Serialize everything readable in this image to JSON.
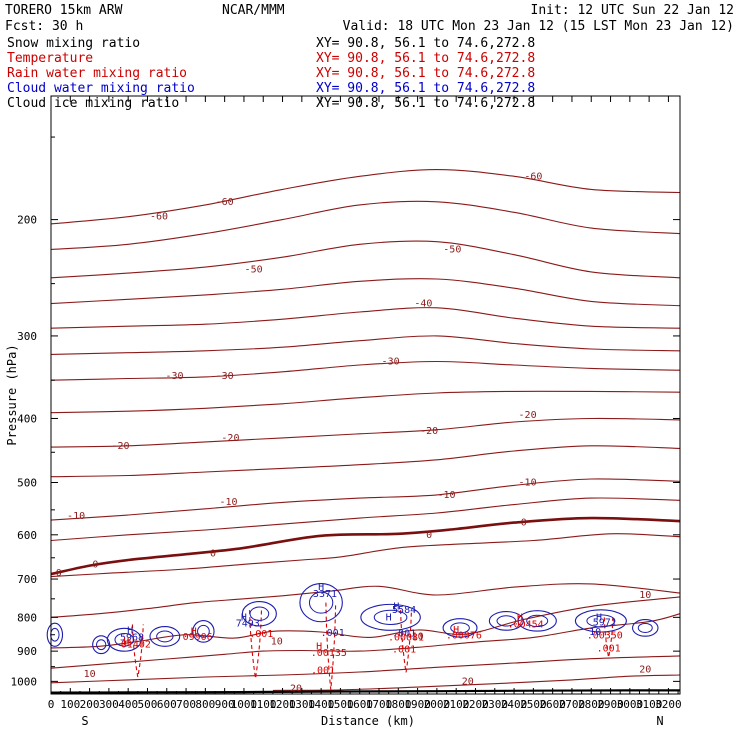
{
  "header": {
    "model": "TORERO  15km ARW",
    "center": "NCAR/MMM",
    "init": "Init: 12 UTC Sun 22 Jan 12",
    "fcst": "Fcst:   30 h",
    "valid": "Valid: 18 UTC Mon 23 Jan 12 (15 LST Mon 23 Jan 12)"
  },
  "fields": [
    {
      "name": "Snow mixing ratio",
      "color": "#000000",
      "xy": "XY=  90.8, 56.1 to  74.6,272.8"
    },
    {
      "name": "Temperature",
      "color": "#cc0000",
      "xy": "XY=  90.8, 56.1 to  74.6,272.8"
    },
    {
      "name": "Rain water mixing ratio",
      "color": "#cc0000",
      "xy": "XY=  90.8, 56.1 to  74.6,272.8"
    },
    {
      "name": "Cloud water mixing ratio",
      "color": "#0000cc",
      "xy": "XY=  90.8, 56.1 to  74.6,272.8"
    },
    {
      "name": "Cloud ice mixing ratio",
      "color": "#000000",
      "xy": "XY=  90.8, 56.1 to  74.6,272.8"
    }
  ],
  "colors": {
    "temperature": "#8b1a1a",
    "zero_isotherm": "#7a0f0f",
    "rain": "#dd0000",
    "cloud_water": "#1c1cb0",
    "cloud_ice": "#000000"
  },
  "chart_data": {
    "type": "line",
    "title": "",
    "xlabel": "Distance (km)",
    "ylabel": "Pressure (hPa)",
    "xlim": [
      0,
      3260
    ],
    "ylim": [
      1045,
      130
    ],
    "y_scale": "log",
    "x_ticks": [
      "0",
      "100",
      "200",
      "300",
      "400",
      "500",
      "600",
      "700",
      "800",
      "900",
      "1000",
      "1100",
      "1200",
      "1300",
      "1400",
      "1500",
      "1600",
      "1700",
      "1800",
      "1900",
      "2000",
      "2100",
      "2200",
      "2300",
      "2400",
      "2500",
      "2600",
      "2700",
      "2800",
      "2900",
      "3000",
      "3100",
      "3200"
    ],
    "y_ticks": [
      "200",
      "300",
      "400",
      "500",
      "600",
      "700",
      "800",
      "900",
      "1000"
    ],
    "x_end_labels": {
      "left": "S",
      "right": "N"
    },
    "isotherm_labels": [
      {
        "label": "-60",
        "x": 560,
        "p": 198
      },
      {
        "label": "-60",
        "x": 900,
        "p": 188
      },
      {
        "label": "-60",
        "x": 2500,
        "p": 172
      },
      {
        "label": "-50",
        "x": 1050,
        "p": 238
      },
      {
        "label": "-50",
        "x": 2080,
        "p": 222
      },
      {
        "label": "-40",
        "x": 1930,
        "p": 268
      },
      {
        "label": "-30",
        "x": 640,
        "p": 345
      },
      {
        "label": "-30",
        "x": 900,
        "p": 345
      },
      {
        "label": "-30",
        "x": 1760,
        "p": 328
      },
      {
        "label": "-20",
        "x": 360,
        "p": 440
      },
      {
        "label": "-20",
        "x": 930,
        "p": 428
      },
      {
        "label": "-20",
        "x": 1960,
        "p": 418
      },
      {
        "label": "-20",
        "x": 2470,
        "p": 395
      },
      {
        "label": "-10",
        "x": 130,
        "p": 562
      },
      {
        "label": "-10",
        "x": 920,
        "p": 535
      },
      {
        "label": "-10",
        "x": 2050,
        "p": 522
      },
      {
        "label": "-10",
        "x": 2470,
        "p": 500
      },
      {
        "label": "0",
        "x": 40,
        "p": 685
      },
      {
        "label": "0",
        "x": 230,
        "p": 665
      },
      {
        "label": "0",
        "x": 840,
        "p": 640
      },
      {
        "label": "0",
        "x": 1960,
        "p": 600
      },
      {
        "label": "0",
        "x": 2450,
        "p": 575
      },
      {
        "label": "10",
        "x": 1170,
        "p": 870
      },
      {
        "label": "10",
        "x": 1900,
        "p": 855
      },
      {
        "label": "10",
        "x": 3080,
        "p": 740
      },
      {
        "label": "10",
        "x": 200,
        "p": 975
      },
      {
        "label": "20",
        "x": 1270,
        "p": 1025
      },
      {
        "label": "20",
        "x": 2160,
        "p": 1000
      },
      {
        "label": "20",
        "x": 3080,
        "p": 960
      }
    ],
    "isotherms": [
      {
        "t": -60,
        "x": [
          0,
          400,
          800,
          1200,
          1600,
          2000,
          2400,
          2800,
          3260
        ],
        "p": [
          203,
          198,
          190,
          180,
          172,
          168,
          172,
          180,
          182
        ]
      },
      {
        "t": -55,
        "x": [
          0,
          400,
          800,
          1200,
          1600,
          2000,
          2400,
          2800,
          3260
        ],
        "p": [
          222,
          218,
          210,
          200,
          190,
          188,
          195,
          206,
          210
        ]
      },
      {
        "t": -50,
        "x": [
          0,
          400,
          800,
          1200,
          1600,
          2000,
          2400,
          2800,
          3260
        ],
        "p": [
          245,
          241,
          236,
          228,
          218,
          216,
          226,
          240,
          245
        ]
      },
      {
        "t": -45,
        "x": [
          0,
          400,
          800,
          1200,
          1600,
          2000,
          2400,
          2800,
          3260
        ],
        "p": [
          268,
          264,
          260,
          255,
          248,
          246,
          254,
          266,
          270
        ]
      },
      {
        "t": -40,
        "x": [
          0,
          400,
          800,
          1200,
          1600,
          2000,
          2400,
          2800,
          3260
        ],
        "p": [
          292,
          290,
          288,
          283,
          276,
          272,
          282,
          290,
          292
        ]
      },
      {
        "t": -35,
        "x": [
          0,
          400,
          800,
          1200,
          1600,
          2000,
          2400,
          2800,
          3260
        ],
        "p": [
          320,
          318,
          316,
          312,
          305,
          300,
          308,
          314,
          316
        ]
      },
      {
        "t": -30,
        "x": [
          0,
          400,
          800,
          1200,
          1600,
          2000,
          2400,
          2800,
          3260
        ],
        "p": [
          350,
          348,
          346,
          340,
          332,
          328,
          332,
          336,
          338
        ]
      },
      {
        "t": -25,
        "x": [
          0,
          400,
          800,
          1200,
          1600,
          2000,
          2400,
          2800,
          3260
        ],
        "p": [
          392,
          390,
          386,
          380,
          372,
          366,
          364,
          364,
          365
        ]
      },
      {
        "t": -20,
        "x": [
          0,
          400,
          800,
          1200,
          1600,
          2000,
          2400,
          2800,
          3260
        ],
        "p": [
          442,
          440,
          434,
          428,
          422,
          416,
          405,
          400,
          402
        ]
      },
      {
        "t": -15,
        "x": [
          0,
          400,
          800,
          1200,
          1600,
          2000,
          2400,
          2800,
          3260
        ],
        "p": [
          490,
          488,
          482,
          476,
          470,
          462,
          448,
          440,
          444
        ]
      },
      {
        "t": -10,
        "x": [
          0,
          400,
          800,
          1200,
          1600,
          2000,
          2400,
          2800,
          3260
        ],
        "p": [
          570,
          560,
          548,
          536,
          528,
          522,
          505,
          494,
          498
        ]
      },
      {
        "t": -5,
        "x": [
          0,
          400,
          800,
          1200,
          1600,
          2000,
          2400,
          2800,
          3260
        ],
        "p": [
          612,
          600,
          590,
          578,
          566,
          556,
          540,
          528,
          532
        ]
      },
      {
        "t": 0,
        "x": [
          0,
          200,
          400,
          700,
          1000,
          1400,
          1800,
          2100,
          2400,
          2800,
          3260
        ],
        "p": [
          688,
          668,
          655,
          642,
          628,
          602,
          598,
          588,
          575,
          566,
          572
        ],
        "bold": true
      },
      {
        "t": 0,
        "x": [
          0,
          300,
          700,
          1000,
          1300,
          1500,
          1800,
          2100,
          2500,
          2900,
          3260
        ],
        "p": [
          694,
          686,
          676,
          665,
          655,
          648,
          628,
          620,
          612,
          598,
          604
        ]
      },
      {
        "t": 5,
        "x": [
          0,
          250,
          500,
          750,
          1000,
          1200,
          1450,
          1700,
          2000,
          2400,
          2800,
          3260
        ],
        "p": [
          800,
          790,
          776,
          760,
          750,
          742,
          730,
          718,
          740,
          720,
          712,
          735
        ]
      },
      {
        "t": 10,
        "x": [
          0,
          250,
          450,
          700,
          950,
          1150,
          1400,
          1650,
          1900,
          2150,
          2450,
          2800,
          3260
        ],
        "p": [
          890,
          885,
          870,
          850,
          860,
          840,
          842,
          858,
          836,
          848,
          806,
          770,
          745
        ]
      },
      {
        "t": 15,
        "x": [
          0,
          300,
          600,
          900,
          1100,
          1300,
          1600,
          1900,
          2200,
          2500,
          2800,
          3100,
          3260
        ],
        "p": [
          955,
          940,
          925,
          910,
          900,
          898,
          900,
          888,
          872,
          858,
          830,
          812,
          790
        ]
      },
      {
        "t": 20,
        "x": [
          0,
          400,
          800,
          1200,
          1600,
          2000,
          2400,
          2800,
          3260
        ],
        "p": [
          1005,
          995,
          985,
          978,
          968,
          952,
          938,
          924,
          915
        ]
      },
      {
        "t": 20,
        "x": [
          1150,
          1500,
          1900,
          2300,
          2700,
          3000,
          3260
        ],
        "p": [
          1032,
          1030,
          1020,
          1008,
          995,
          982,
          978
        ]
      }
    ],
    "surface": {
      "x": [
        0,
        500,
        1000,
        1500,
        2000,
        2500,
        3000,
        3260
      ],
      "p": [
        1040,
        1039,
        1038,
        1036,
        1035,
        1033,
        1032,
        1032
      ]
    },
    "rain_columns": [
      {
        "x": 450,
        "p_top": 820,
        "p_bottom": 985,
        "half_width": 20
      },
      {
        "x": 1060,
        "p_top": 780,
        "p_bottom": 990,
        "half_width": 22
      },
      {
        "x": 1450,
        "p_top": 760,
        "p_bottom": 1030,
        "half_width": 18
      },
      {
        "x": 1840,
        "p_top": 780,
        "p_bottom": 970,
        "half_width": 20
      },
      {
        "x": 2890,
        "p_top": 800,
        "p_bottom": 920,
        "half_width": 16
      }
    ],
    "cloud_cells": [
      {
        "x": 20,
        "p": 850,
        "rx": 18,
        "rp": 45
      },
      {
        "x": 260,
        "p": 880,
        "rx": 20,
        "rp": 30
      },
      {
        "x": 380,
        "p": 865,
        "rx": 40,
        "rp": 45
      },
      {
        "x": 590,
        "p": 855,
        "rx": 35,
        "rp": 35
      },
      {
        "x": 790,
        "p": 840,
        "rx": 25,
        "rp": 40
      },
      {
        "x": 1080,
        "p": 790,
        "rx": 40,
        "rp": 45
      },
      {
        "x": 1400,
        "p": 760,
        "rx": 50,
        "rp": 80
      },
      {
        "x": 1760,
        "p": 800,
        "rx": 70,
        "rp": 50
      },
      {
        "x": 2120,
        "p": 830,
        "rx": 40,
        "rp": 30
      },
      {
        "x": 2360,
        "p": 810,
        "rx": 40,
        "rp": 30
      },
      {
        "x": 2520,
        "p": 810,
        "rx": 45,
        "rp": 35
      },
      {
        "x": 2850,
        "p": 810,
        "rx": 60,
        "rp": 40
      },
      {
        "x": 3080,
        "p": 830,
        "rx": 30,
        "rp": 25
      }
    ],
    "extrema_labels": [
      {
        "text": "H",
        "x": 410,
        "p": 838,
        "series": "cloud_water"
      },
      {
        "text": "5968",
        "x": 420,
        "p": 858,
        "series": "cloud_water"
      },
      {
        "text": "H",
        "x": 390,
        "p": 872,
        "series": "rain"
      },
      {
        "text": "01402",
        "x": 440,
        "p": 880,
        "series": "rain"
      },
      {
        "text": "H",
        "x": 740,
        "p": 840,
        "series": "rain"
      },
      {
        "text": "09906",
        "x": 760,
        "p": 857,
        "series": "rain"
      },
      {
        "text": "H",
        "x": 1000,
        "p": 800,
        "series": "cloud_water"
      },
      {
        "text": "7493",
        "x": 1020,
        "p": 818,
        "series": "cloud_water"
      },
      {
        "text": ".001",
        "x": 1090,
        "p": 848,
        "series": "rain"
      },
      {
        "text": "H",
        "x": 1400,
        "p": 720,
        "series": "cloud_water"
      },
      {
        "text": "3371",
        "x": 1420,
        "p": 738,
        "series": "cloud_water"
      },
      {
        "text": ".001",
        "x": 1460,
        "p": 845,
        "series": "cloud_water"
      },
      {
        "text": "H",
        "x": 1390,
        "p": 885,
        "series": "rain"
      },
      {
        "text": ".00135",
        "x": 1440,
        "p": 906,
        "series": "rain"
      },
      {
        "text": ".001",
        "x": 1410,
        "p": 962,
        "series": "rain"
      },
      {
        "text": "H",
        "x": 1790,
        "p": 770,
        "series": "cloud_water"
      },
      {
        "text": "5584",
        "x": 1830,
        "p": 780,
        "series": "cloud_water"
      },
      {
        "text": "H",
        "x": 1750,
        "p": 800,
        "series": "cloud_water"
      },
      {
        "text": ".001",
        "x": 1830,
        "p": 846,
        "series": "cloud_water"
      },
      {
        "text": ".00081",
        "x": 1840,
        "p": 858,
        "series": "rain"
      },
      {
        "text": ".001",
        "x": 1830,
        "p": 895,
        "series": "rain"
      },
      {
        "text": "H",
        "x": 2100,
        "p": 836,
        "series": "rain"
      },
      {
        "text": ".00076",
        "x": 2140,
        "p": 852,
        "series": "rain"
      },
      {
        "text": "H",
        "x": 2430,
        "p": 800,
        "series": "rain"
      },
      {
        "text": ".00454",
        "x": 2460,
        "p": 820,
        "series": "rain"
      },
      {
        "text": "H",
        "x": 2840,
        "p": 800,
        "series": "cloud_water"
      },
      {
        "text": "5971",
        "x": 2870,
        "p": 815,
        "series": "cloud_water"
      },
      {
        "text": ".00350",
        "x": 2870,
        "p": 852,
        "series": "rain"
      },
      {
        "text": ".001",
        "x": 2890,
        "p": 892,
        "series": "rain"
      },
      {
        "text": "10",
        "x": 2820,
        "p": 842,
        "series": "cloud_water"
      }
    ]
  }
}
